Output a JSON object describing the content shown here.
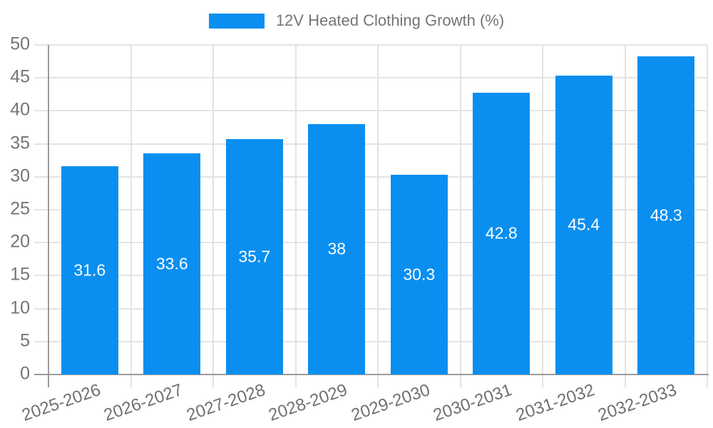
{
  "chart_data": {
    "type": "bar",
    "title": "12V Heated Clothing Growth (%)",
    "categories": [
      "2025-2026",
      "2026-2027",
      "2027-2028",
      "2028-2029",
      "2029-2030",
      "2030-2031",
      "2031-2032",
      "2032-2033"
    ],
    "values": [
      31.6,
      33.6,
      35.7,
      38,
      30.3,
      42.8,
      45.4,
      48.3
    ],
    "value_labels": [
      "31.6",
      "33.6",
      "35.7",
      "38",
      "30.3",
      "42.8",
      "45.4",
      "48.3"
    ],
    "xlabel": "",
    "ylabel": "",
    "ylim": [
      0,
      50
    ],
    "ytick_step": 5,
    "yticks": [
      0,
      5,
      10,
      15,
      20,
      25,
      30,
      35,
      40,
      45,
      50
    ],
    "grid": true,
    "legend_position": "top",
    "legend_label": "12V Heated Clothing Growth (%)",
    "x_label_rotation_deg": -19,
    "colors": {
      "bar": "#0a8ff0",
      "grid": "#e3e3e3",
      "axis": "#9b9b9b",
      "tick_text": "#757575",
      "value_text": "#ffffff",
      "background": "#ffffff"
    }
  }
}
